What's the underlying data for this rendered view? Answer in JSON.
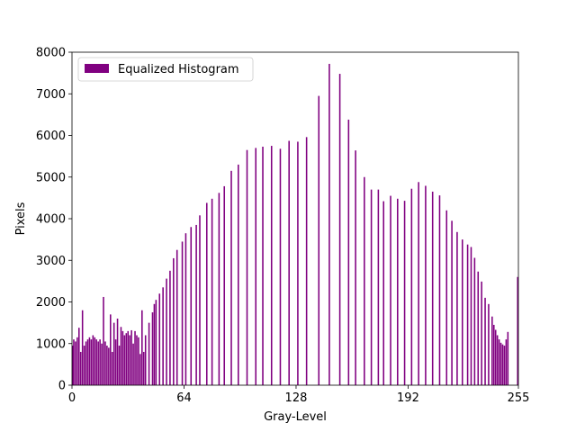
{
  "chart_data": {
    "type": "bar",
    "xlabel": "Gray-Level",
    "ylabel": "Pixels",
    "xlim": [
      0,
      255
    ],
    "ylim": [
      0,
      8000
    ],
    "x_ticks": [
      0,
      64,
      128,
      192,
      255
    ],
    "y_ticks": [
      0,
      1000,
      2000,
      3000,
      4000,
      5000,
      6000,
      7000,
      8000
    ],
    "grid": false,
    "legend_position": "upper-left",
    "bar_color": "#800080",
    "series": [
      {
        "name": "Equalized Histogram",
        "points": [
          [
            0,
            950
          ],
          [
            1,
            1100
          ],
          [
            2,
            1050
          ],
          [
            3,
            1150
          ],
          [
            4,
            1380
          ],
          [
            5,
            800
          ],
          [
            6,
            1800
          ],
          [
            7,
            950
          ],
          [
            8,
            1050
          ],
          [
            9,
            1100
          ],
          [
            10,
            1150
          ],
          [
            11,
            1100
          ],
          [
            12,
            1200
          ],
          [
            13,
            1150
          ],
          [
            14,
            1100
          ],
          [
            15,
            1050
          ],
          [
            16,
            1100
          ],
          [
            17,
            1000
          ],
          [
            18,
            2120
          ],
          [
            19,
            1050
          ],
          [
            20,
            950
          ],
          [
            21,
            900
          ],
          [
            22,
            1700
          ],
          [
            23,
            800
          ],
          [
            24,
            1500
          ],
          [
            25,
            1100
          ],
          [
            26,
            1600
          ],
          [
            27,
            950
          ],
          [
            28,
            1400
          ],
          [
            29,
            1300
          ],
          [
            30,
            1200
          ],
          [
            31,
            1250
          ],
          [
            32,
            1300
          ],
          [
            33,
            1200
          ],
          [
            34,
            1320
          ],
          [
            35,
            1000
          ],
          [
            36,
            1300
          ],
          [
            37,
            1200
          ],
          [
            38,
            1150
          ],
          [
            39,
            750
          ],
          [
            40,
            1800
          ],
          [
            41,
            800
          ],
          [
            42,
            1200
          ],
          [
            44,
            1500
          ],
          [
            46,
            1750
          ],
          [
            47,
            1950
          ],
          [
            48,
            2050
          ],
          [
            50,
            2200
          ],
          [
            52,
            2350
          ],
          [
            54,
            2560
          ],
          [
            56,
            2750
          ],
          [
            58,
            3050
          ],
          [
            60,
            3250
          ],
          [
            63,
            3450
          ],
          [
            65,
            3650
          ],
          [
            68,
            3800
          ],
          [
            71,
            3850
          ],
          [
            73,
            4080
          ],
          [
            77,
            4380
          ],
          [
            80,
            4480
          ],
          [
            84,
            4620
          ],
          [
            87,
            4780
          ],
          [
            91,
            5150
          ],
          [
            95,
            5300
          ],
          [
            100,
            5650
          ],
          [
            105,
            5700
          ],
          [
            109,
            5730
          ],
          [
            114,
            5750
          ],
          [
            119,
            5680
          ],
          [
            124,
            5870
          ],
          [
            129,
            5850
          ],
          [
            134,
            5960
          ],
          [
            141,
            6950
          ],
          [
            147,
            7720
          ],
          [
            153,
            7480
          ],
          [
            158,
            6380
          ],
          [
            162,
            5640
          ],
          [
            167,
            5000
          ],
          [
            171,
            4700
          ],
          [
            175,
            4700
          ],
          [
            178,
            4420
          ],
          [
            182,
            4550
          ],
          [
            186,
            4480
          ],
          [
            190,
            4430
          ],
          [
            194,
            4720
          ],
          [
            198,
            4880
          ],
          [
            202,
            4790
          ],
          [
            206,
            4650
          ],
          [
            210,
            4560
          ],
          [
            214,
            4200
          ],
          [
            217,
            3950
          ],
          [
            220,
            3680
          ],
          [
            223,
            3500
          ],
          [
            226,
            3380
          ],
          [
            228,
            3320
          ],
          [
            230,
            3060
          ],
          [
            232,
            2730
          ],
          [
            234,
            2490
          ],
          [
            236,
            2100
          ],
          [
            238,
            1950
          ],
          [
            240,
            1650
          ],
          [
            241,
            1450
          ],
          [
            242,
            1330
          ],
          [
            243,
            1200
          ],
          [
            244,
            1100
          ],
          [
            245,
            1020
          ],
          [
            246,
            980
          ],
          [
            247,
            950
          ],
          [
            248,
            1100
          ],
          [
            249,
            1280
          ],
          [
            255,
            2600
          ]
        ]
      }
    ]
  }
}
